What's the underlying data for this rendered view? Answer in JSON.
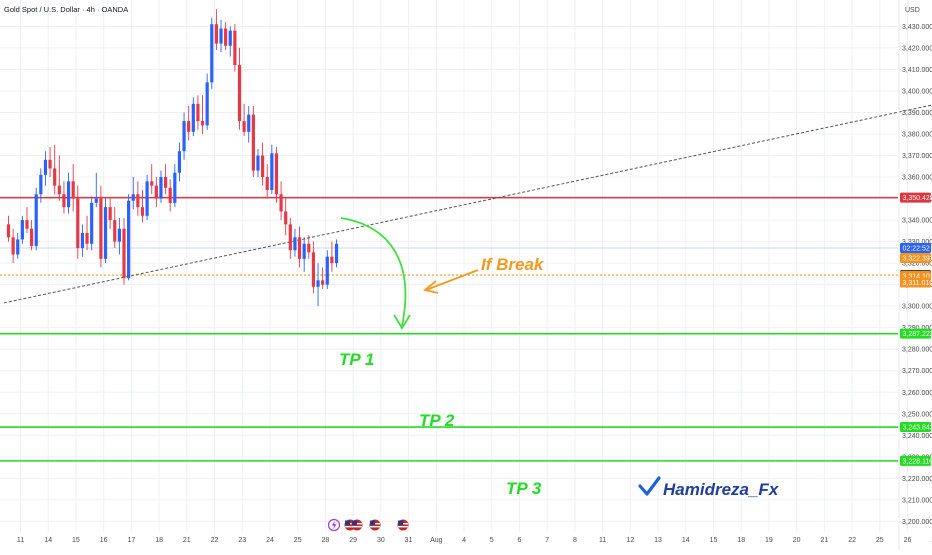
{
  "header": {
    "symbol_title": "Gold Spot / U.S. Dollar · 4h · OANDA",
    "currency": "USD"
  },
  "colors": {
    "up": "#2962ff",
    "down": "#e53945",
    "resistance": "#e0343f",
    "target": "#22dd22",
    "arrow_green": "#44dd44",
    "arrow_orange": "#f29a1f",
    "grid": "#eef0f4",
    "trend": "#555555",
    "tag_blue": "#2962ff",
    "tag_orange": "#f5921f",
    "tag_dark": "#131722"
  },
  "chart_data": {
    "type": "candlestick",
    "ylim": [
      3196,
      3439
    ],
    "y_ticks": [
      3200,
      3210,
      3220,
      3230,
      3240,
      3250,
      3260,
      3270,
      3280,
      3290,
      3300,
      3310,
      3320,
      3330,
      3340,
      3350,
      3360,
      3370,
      3380,
      3390,
      3400,
      3410,
      3420,
      3430
    ],
    "y_tick_labels": [
      "3,200.000",
      "3,210.000",
      "3,220.000",
      "3,230.000",
      "3,240.000",
      "3,250.000",
      "3,260.000",
      "3,270.000",
      "3,280.000",
      "3,290.000",
      "3,300.000",
      "3,310.000",
      "3,320.000",
      "3,330.000",
      "3,340.000",
      "3,350.000",
      "3,360.000",
      "3,370.000",
      "3,380.000",
      "3,390.000",
      "3,400.000",
      "3,410.000",
      "3,420.000",
      "3,430.000"
    ],
    "x_labels": [
      {
        "label": "11",
        "pos": 0
      },
      {
        "label": "14",
        "pos": 6
      },
      {
        "label": "15",
        "pos": 12
      },
      {
        "label": "16",
        "pos": 18
      },
      {
        "label": "17",
        "pos": 24
      },
      {
        "label": "18",
        "pos": 30
      },
      {
        "label": "21",
        "pos": 36
      },
      {
        "label": "22",
        "pos": 42
      },
      {
        "label": "23",
        "pos": 48
      },
      {
        "label": "24",
        "pos": 54
      },
      {
        "label": "25",
        "pos": 60
      },
      {
        "label": "28",
        "pos": 66
      },
      {
        "label": "29",
        "pos": 72
      },
      {
        "label": "30",
        "pos": 78
      },
      {
        "label": "31",
        "pos": 84
      },
      {
        "label": "Aug",
        "pos": 90
      },
      {
        "label": "4",
        "pos": 96
      },
      {
        "label": "5",
        "pos": 102
      },
      {
        "label": "6",
        "pos": 108
      },
      {
        "label": "7",
        "pos": 114
      },
      {
        "label": "8",
        "pos": 120
      },
      {
        "label": "11",
        "pos": 126
      },
      {
        "label": "12",
        "pos": 132
      },
      {
        "label": "13",
        "pos": 138
      },
      {
        "label": "14",
        "pos": 144
      },
      {
        "label": "15",
        "pos": 150
      },
      {
        "label": "18",
        "pos": 156
      },
      {
        "label": "19",
        "pos": 162
      },
      {
        "label": "20",
        "pos": 168
      },
      {
        "label": "21",
        "pos": 174
      },
      {
        "label": "22",
        "pos": 180
      },
      {
        "label": "25",
        "pos": 186
      },
      {
        "label": "26",
        "pos": 192
      },
      {
        "label": "27",
        "pos": 198
      },
      {
        "label": "28",
        "pos": 204
      },
      {
        "label": "29",
        "pos": 210
      }
    ],
    "candles": [
      [
        3338,
        3342,
        3330,
        3332
      ],
      [
        3332,
        3336,
        3320,
        3324
      ],
      [
        3324,
        3334,
        3322,
        3331
      ],
      [
        3331,
        3342,
        3329,
        3340
      ],
      [
        3340,
        3346,
        3334,
        3336
      ],
      [
        3336,
        3340,
        3326,
        3328
      ],
      [
        3328,
        3355,
        3326,
        3352
      ],
      [
        3352,
        3364,
        3348,
        3361
      ],
      [
        3361,
        3372,
        3356,
        3368
      ],
      [
        3368,
        3374,
        3360,
        3364
      ],
      [
        3364,
        3375,
        3352,
        3356
      ],
      [
        3356,
        3370,
        3349,
        3352
      ],
      [
        3352,
        3358,
        3343,
        3346
      ],
      [
        3346,
        3362,
        3343,
        3358
      ],
      [
        3358,
        3366,
        3344,
        3350
      ],
      [
        3350,
        3356,
        3322,
        3327
      ],
      [
        3327,
        3338,
        3323,
        3334
      ],
      [
        3334,
        3342,
        3326,
        3329
      ],
      [
        3329,
        3351,
        3326,
        3348
      ],
      [
        3348,
        3362,
        3346,
        3350
      ],
      [
        3350,
        3356,
        3318,
        3322
      ],
      [
        3322,
        3350,
        3320,
        3346
      ],
      [
        3346,
        3350,
        3336,
        3340
      ],
      [
        3340,
        3346,
        3327,
        3330
      ],
      [
        3330,
        3341,
        3324,
        3336
      ],
      [
        3336,
        3341,
        3310,
        3313
      ],
      [
        3313,
        3352,
        3312,
        3349
      ],
      [
        3349,
        3360,
        3345,
        3352
      ],
      [
        3352,
        3358,
        3342,
        3346
      ],
      [
        3346,
        3354,
        3339,
        3342
      ],
      [
        3342,
        3361,
        3340,
        3358
      ],
      [
        3358,
        3366,
        3352,
        3356
      ],
      [
        3356,
        3360,
        3346,
        3350
      ],
      [
        3350,
        3363,
        3348,
        3360
      ],
      [
        3360,
        3366,
        3352,
        3355
      ],
      [
        3355,
        3359,
        3344,
        3348
      ],
      [
        3348,
        3366,
        3346,
        3362
      ],
      [
        3362,
        3376,
        3358,
        3372
      ],
      [
        3372,
        3390,
        3368,
        3386
      ],
      [
        3386,
        3393,
        3377,
        3381
      ],
      [
        3381,
        3397,
        3379,
        3394
      ],
      [
        3394,
        3398,
        3382,
        3386
      ],
      [
        3386,
        3398,
        3380,
        3384
      ],
      [
        3384,
        3408,
        3382,
        3404
      ],
      [
        3404,
        3434,
        3401,
        3431
      ],
      [
        3431,
        3438,
        3419,
        3422
      ],
      [
        3422,
        3433,
        3418,
        3429
      ],
      [
        3429,
        3432,
        3419,
        3421
      ],
      [
        3421,
        3430,
        3416,
        3428
      ],
      [
        3428,
        3431,
        3409,
        3412
      ],
      [
        3412,
        3420,
        3382,
        3386
      ],
      [
        3386,
        3394,
        3379,
        3381
      ],
      [
        3381,
        3393,
        3376,
        3389
      ],
      [
        3389,
        3393,
        3360,
        3363
      ],
      [
        3363,
        3373,
        3360,
        3370
      ],
      [
        3370,
        3376,
        3356,
        3360
      ],
      [
        3360,
        3366,
        3350,
        3354
      ],
      [
        3354,
        3375,
        3352,
        3371
      ],
      [
        3371,
        3374,
        3348,
        3352
      ],
      [
        3352,
        3358,
        3340,
        3344
      ],
      [
        3344,
        3350,
        3333,
        3338
      ],
      [
        3338,
        3341,
        3322,
        3326
      ],
      [
        3326,
        3336,
        3323,
        3332
      ],
      [
        3332,
        3337,
        3318,
        3322
      ],
      [
        3322,
        3332,
        3316,
        3329
      ],
      [
        3329,
        3333,
        3322,
        3325
      ],
      [
        3325,
        3330,
        3306,
        3309
      ],
      [
        3309,
        3320,
        3300,
        3312
      ],
      [
        3312,
        3318,
        3308,
        3310
      ],
      [
        3310,
        3326,
        3308,
        3323
      ],
      [
        3323,
        3330,
        3316,
        3320
      ],
      [
        3320,
        3331,
        3318,
        3329
      ]
    ],
    "levels": {
      "resistance": {
        "price": 3350.428,
        "label": "3,350.428"
      },
      "support": {
        "price": 3314.45,
        "label": "3,314.450"
      },
      "current": {
        "price": 3322.391,
        "label": "3,322.391",
        "countdown": "02:22:52",
        "countdown_price": 3327
      },
      "tp1": {
        "price": 3287.222,
        "label": "3,287.222"
      },
      "tp2": {
        "price": 3243.843,
        "label": "3,243.843"
      },
      "tp3": {
        "price": 3228.116,
        "label": "3,228.116"
      },
      "extra_tags": [
        {
          "price": 3314.101,
          "label": "3,314.101"
        },
        {
          "price": 3311.01,
          "label": "3,311.010"
        }
      ]
    },
    "trendline": {
      "from": [
        -1,
        3301.5
      ],
      "to": [
        212,
        3399
      ]
    },
    "annotations": {
      "if_break": "If Break",
      "tp1": "TP 1",
      "tp2": "TP 2",
      "tp3": "TP 3",
      "author": "Hamidreza_Fx"
    }
  }
}
